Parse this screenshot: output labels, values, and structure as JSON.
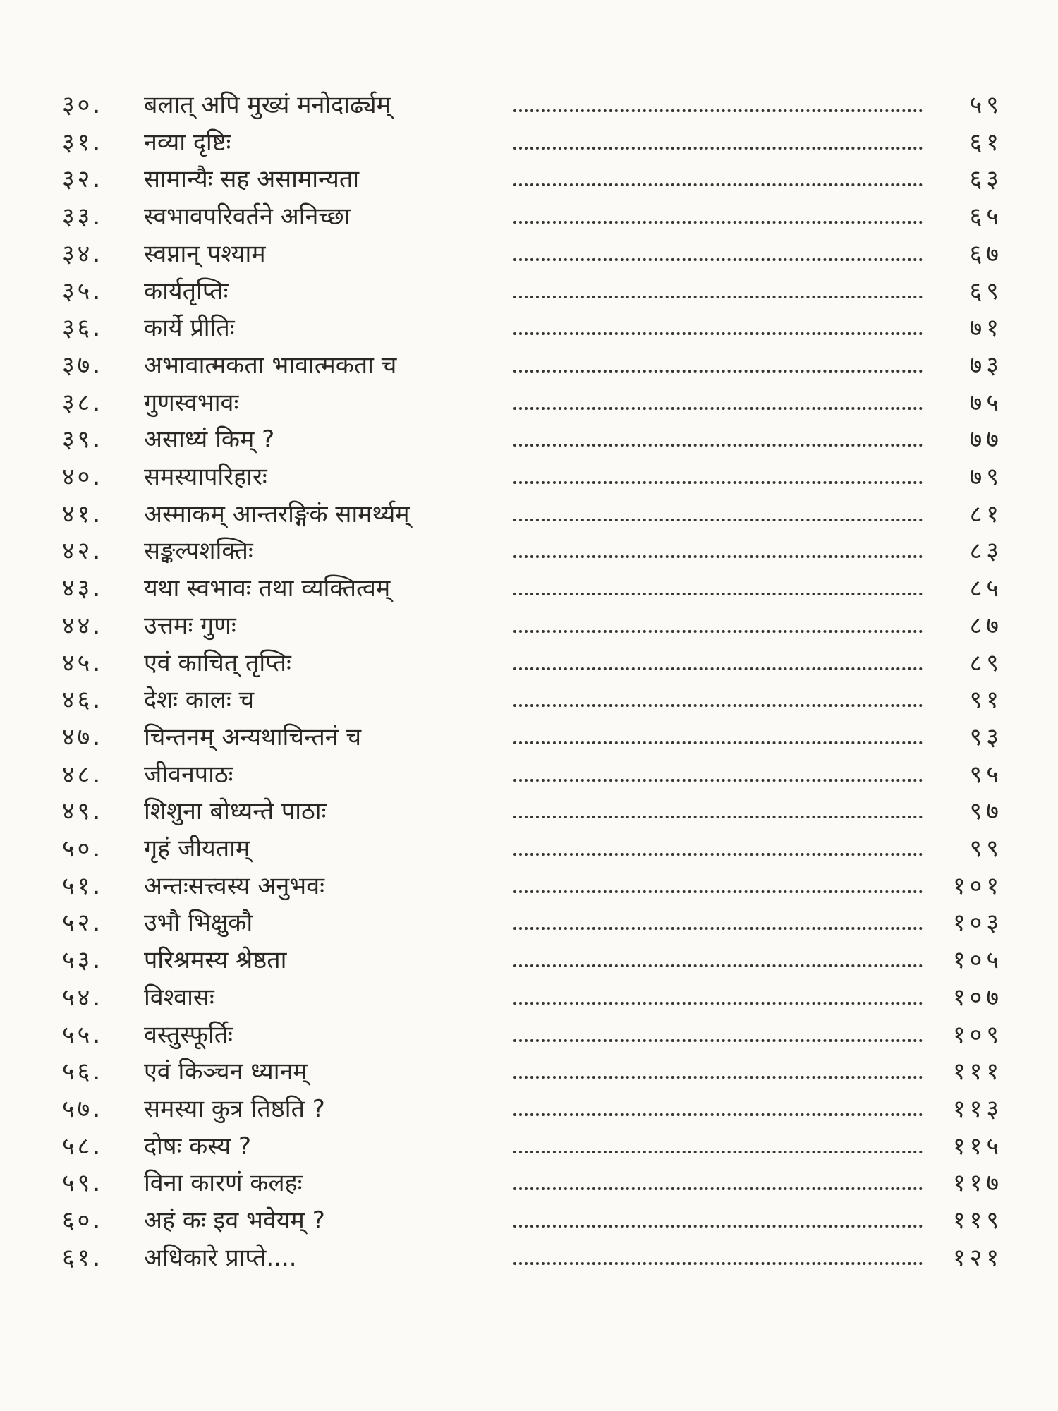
{
  "entries": [
    {
      "number": "३०.",
      "title": "बलात् अपि मुख्यं मनोदार्ढ्यम्",
      "page": "५९"
    },
    {
      "number": "३१.",
      "title": "नव्या दृष्टिः",
      "page": "६१"
    },
    {
      "number": "३२.",
      "title": "सामान्यैः सह असामान्यता",
      "page": "६३"
    },
    {
      "number": "३३.",
      "title": "स्वभावपरिवर्तने अनिच्छा",
      "page": "६५"
    },
    {
      "number": "३४.",
      "title": "स्वप्नान् पश्याम",
      "page": "६७"
    },
    {
      "number": "३५.",
      "title": "कार्यतृप्तिः",
      "page": "६९"
    },
    {
      "number": "३६.",
      "title": "कार्ये प्रीतिः",
      "page": "७१"
    },
    {
      "number": "३७.",
      "title": "अभावात्मकता भावात्मकता च",
      "page": "७३"
    },
    {
      "number": "३८.",
      "title": "गुणस्वभावः",
      "page": "७५"
    },
    {
      "number": "३९.",
      "title": "असाध्यं किम् ?",
      "page": "७७"
    },
    {
      "number": "४०.",
      "title": "समस्यापरिहारः",
      "page": "७९"
    },
    {
      "number": "४१.",
      "title": "अस्माकम् आन्तरङ्गिकं सामर्थ्यम्",
      "page": "८१"
    },
    {
      "number": "४२.",
      "title": "सङ्कल्पशक्तिः",
      "page": "८३"
    },
    {
      "number": "४३.",
      "title": "यथा स्वभावः तथा व्यक्तित्वम्",
      "page": "८५"
    },
    {
      "number": "४४.",
      "title": "उत्तमः गुणः",
      "page": "८७"
    },
    {
      "number": "४५.",
      "title": "एवं काचित् तृप्तिः",
      "page": "८९"
    },
    {
      "number": "४६.",
      "title": "देशः कालः च",
      "page": "९१"
    },
    {
      "number": "४७.",
      "title": "चिन्तनम् अन्यथाचिन्तनं च",
      "page": "९३"
    },
    {
      "number": "४८.",
      "title": "जीवनपाठः",
      "page": "९५"
    },
    {
      "number": "४९.",
      "title": "शिशुना बोध्यन्ते पाठाः",
      "page": "९७"
    },
    {
      "number": "५०.",
      "title": "गृहं जीयताम्",
      "page": "९९"
    },
    {
      "number": "५१.",
      "title": "अन्तःसत्त्वस्य अनुभवः",
      "page": "१०१"
    },
    {
      "number": "५२.",
      "title": "उभौ भिक्षुकौ",
      "page": "१०३"
    },
    {
      "number": "५३.",
      "title": "परिश्रमस्य श्रेष्ठता",
      "page": "१०५"
    },
    {
      "number": "५४.",
      "title": "विश्वासः",
      "page": "१०७"
    },
    {
      "number": "५५.",
      "title": "वस्तुस्फूर्तिः",
      "page": "१०९"
    },
    {
      "number": "५६.",
      "title": "एवं किञ्चन ध्यानम्",
      "page": "१११"
    },
    {
      "number": "५७.",
      "title": "समस्या कुत्र तिष्ठति ?",
      "page": "११३"
    },
    {
      "number": "५८.",
      "title": "दोषः कस्य ?",
      "page": "११५"
    },
    {
      "number": "५९.",
      "title": "विना कारणं कलहः",
      "page": "११७"
    },
    {
      "number": "६०.",
      "title": "अहं कः इव भवेयम् ?",
      "page": "११९"
    },
    {
      "number": "६१.",
      "title": "अधिकारे प्राप्ते....",
      "page": "१२१"
    }
  ]
}
